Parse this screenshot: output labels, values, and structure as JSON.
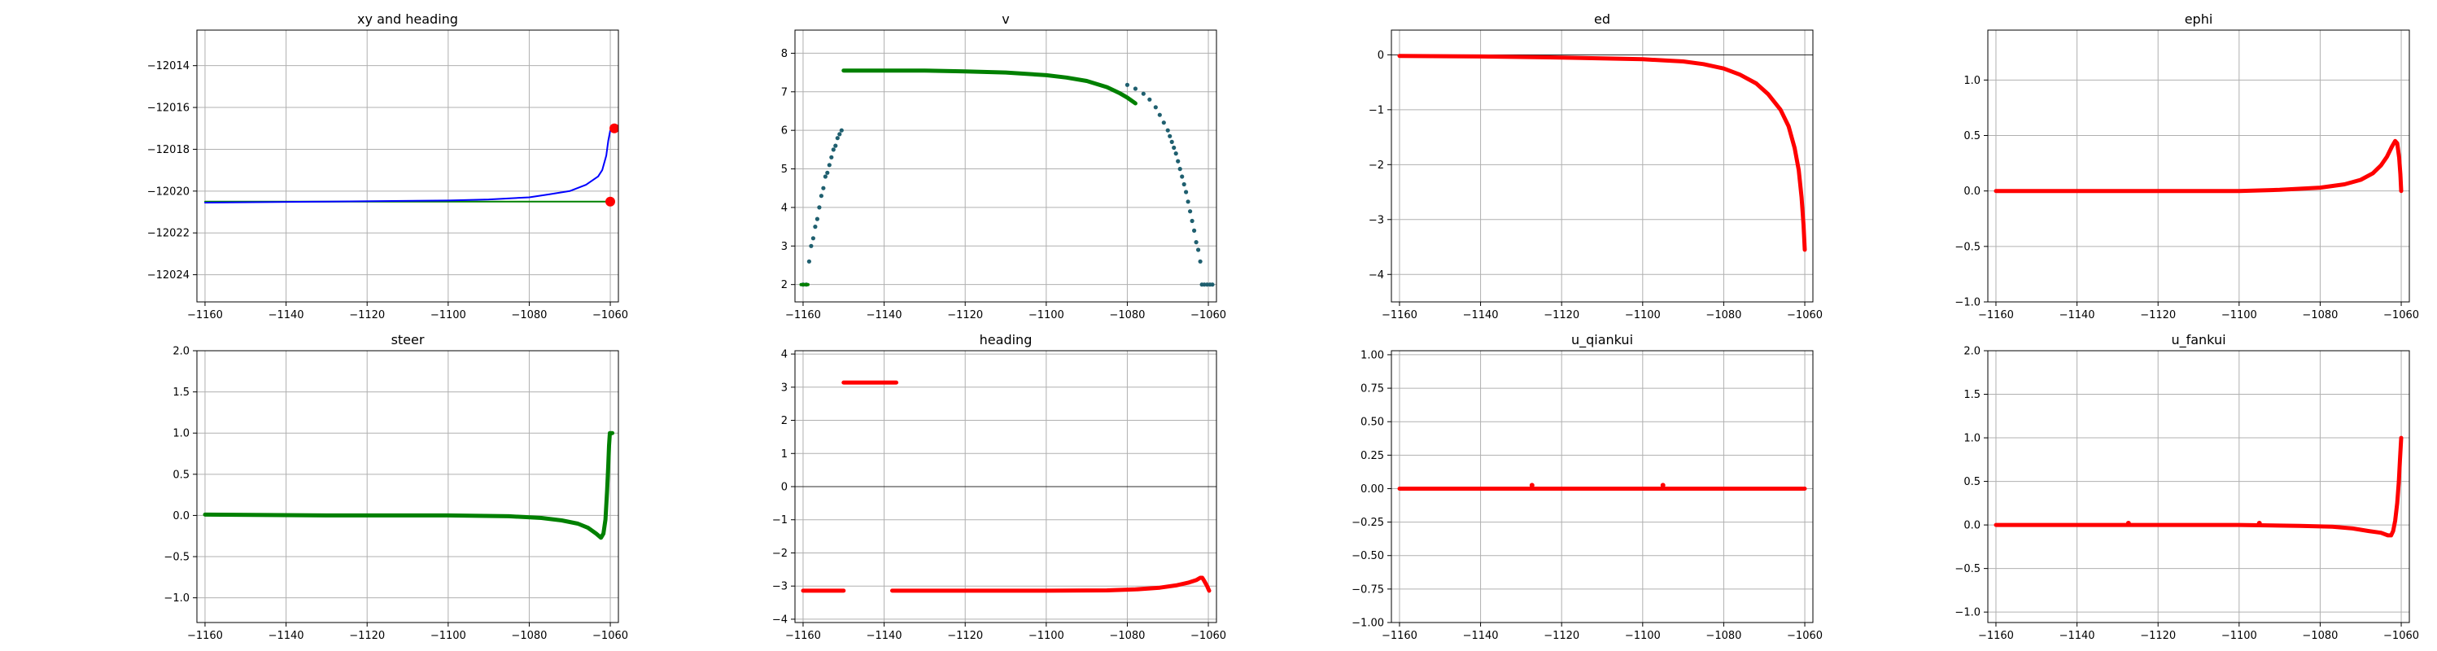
{
  "colors": {
    "red": "#ff0000",
    "green": "#008000",
    "blue": "#0000ff",
    "teal": "#1f5f6f"
  },
  "chart_data": [
    {
      "type": "line",
      "title": "xy and heading",
      "xlim": [
        -1162,
        -1058
      ],
      "ylim": [
        -12025.3,
        -12012.3
      ],
      "xticks": [
        -1160,
        -1140,
        -1120,
        -1100,
        -1080,
        -1060
      ],
      "yticks": [
        -12024,
        -12022,
        -12020,
        -12018,
        -12016,
        -12014
      ],
      "xtick_labels": [
        "−1160",
        "−1140",
        "−1120",
        "−1100",
        "−1080",
        "−1060"
      ],
      "ytick_labels": [
        "−12024",
        "−12022",
        "−12020",
        "−12018",
        "−12016",
        "−12014"
      ],
      "grid": true,
      "series": [
        {
          "style": "line",
          "color": "green",
          "points": [
            [
              -1160,
              -12020.5
            ],
            [
              -1060,
              -12020.5
            ]
          ]
        },
        {
          "style": "line",
          "color": "blue",
          "points": [
            [
              -1160,
              -12020.55
            ],
            [
              -1130,
              -12020.5
            ],
            [
              -1100,
              -12020.45
            ],
            [
              -1090,
              -12020.4
            ],
            [
              -1080,
              -12020.3
            ],
            [
              -1075,
              -12020.15
            ],
            [
              -1070,
              -12020.0
            ],
            [
              -1066,
              -12019.7
            ],
            [
              -1063,
              -12019.3
            ],
            [
              -1062,
              -12019.0
            ],
            [
              -1061,
              -12018.3
            ],
            [
              -1060.5,
              -12017.6
            ],
            [
              -1060,
              -12017.1
            ]
          ]
        },
        {
          "style": "markers",
          "color": "red",
          "r": 6,
          "points": [
            [
              -1060,
              -12020.5
            ],
            [
              -1059,
              -12017.0
            ]
          ]
        }
      ]
    },
    {
      "type": "scatter",
      "title": "v",
      "xlim": [
        -1162,
        -1058
      ],
      "ylim": [
        1.55,
        8.6
      ],
      "xticks": [
        -1160,
        -1140,
        -1120,
        -1100,
        -1080,
        -1060
      ],
      "yticks": [
        2,
        3,
        4,
        5,
        6,
        7,
        8
      ],
      "xtick_labels": [
        "−1160",
        "−1140",
        "−1120",
        "−1100",
        "−1080",
        "−1060"
      ],
      "ytick_labels": [
        "2",
        "3",
        "4",
        "5",
        "6",
        "7",
        "8"
      ],
      "grid": true,
      "series": [
        {
          "style": "markers",
          "color": "teal",
          "r": 2.6,
          "points": [
            [
              -1160,
              2.0
            ],
            [
              -1159.2,
              2.0
            ],
            [
              -1158.5,
              2.6
            ],
            [
              -1158,
              3.0
            ],
            [
              -1157.5,
              3.2
            ],
            [
              -1157,
              3.5
            ],
            [
              -1156.5,
              3.7
            ],
            [
              -1156,
              4.0
            ],
            [
              -1155.5,
              4.3
            ],
            [
              -1155,
              4.5
            ],
            [
              -1154.5,
              4.8
            ],
            [
              -1154,
              4.9
            ],
            [
              -1153.5,
              5.1
            ],
            [
              -1153,
              5.3
            ],
            [
              -1152.5,
              5.5
            ],
            [
              -1152,
              5.6
            ],
            [
              -1151.5,
              5.8
            ],
            [
              -1151,
              5.9
            ],
            [
              -1150.5,
              6.0
            ],
            [
              -1080,
              7.18
            ],
            [
              -1078,
              7.08
            ],
            [
              -1076,
              6.95
            ],
            [
              -1074.5,
              6.8
            ],
            [
              -1073,
              6.6
            ],
            [
              -1072,
              6.4
            ],
            [
              -1071,
              6.2
            ],
            [
              -1070,
              6.0
            ],
            [
              -1069.5,
              5.85
            ],
            [
              -1069,
              5.7
            ],
            [
              -1068.5,
              5.55
            ],
            [
              -1068,
              5.4
            ],
            [
              -1067.5,
              5.2
            ],
            [
              -1067,
              5.0
            ],
            [
              -1066.5,
              4.8
            ],
            [
              -1066,
              4.6
            ],
            [
              -1065.5,
              4.4
            ],
            [
              -1065,
              4.15
            ],
            [
              -1064.5,
              3.9
            ],
            [
              -1064,
              3.65
            ],
            [
              -1063.5,
              3.4
            ],
            [
              -1063,
              3.1
            ],
            [
              -1062.5,
              2.9
            ],
            [
              -1062,
              2.6
            ],
            [
              -1061.6,
              2.0
            ],
            [
              -1061,
              2.0
            ],
            [
              -1060.3,
              2.0
            ],
            [
              -1059.6,
              2.0
            ],
            [
              -1059,
              2.0
            ]
          ]
        },
        {
          "style": "line",
          "color": "green",
          "width": 4,
          "points": [
            [
              -1160.5,
              2.0
            ],
            [
              -1158.8,
              2.0
            ]
          ]
        },
        {
          "style": "line",
          "color": "green",
          "width": 5,
          "points": [
            [
              -1150,
              7.55
            ],
            [
              -1130,
              7.55
            ],
            [
              -1120,
              7.53
            ],
            [
              -1110,
              7.5
            ],
            [
              -1100,
              7.43
            ],
            [
              -1095,
              7.37
            ],
            [
              -1090,
              7.28
            ],
            [
              -1085,
              7.12
            ],
            [
              -1082,
              6.97
            ],
            [
              -1080,
              6.85
            ],
            [
              -1078,
              6.7
            ]
          ]
        }
      ]
    },
    {
      "type": "line",
      "title": "ed",
      "xlim": [
        -1162,
        -1058
      ],
      "ylim": [
        -4.5,
        0.45
      ],
      "xticks": [
        -1160,
        -1140,
        -1120,
        -1100,
        -1080,
        -1060
      ],
      "yticks": [
        -4,
        -3,
        -2,
        -1,
        0
      ],
      "xtick_labels": [
        "−1160",
        "−1140",
        "−1120",
        "−1100",
        "−1080",
        "−1060"
      ],
      "ytick_labels": [
        "−4",
        "−3",
        "−2",
        "−1",
        "0"
      ],
      "grid": true,
      "zero_line": true,
      "series": [
        {
          "style": "line",
          "color": "red",
          "width": 5,
          "points": [
            [
              -1160,
              -0.02
            ],
            [
              -1140,
              -0.03
            ],
            [
              -1120,
              -0.05
            ],
            [
              -1100,
              -0.08
            ],
            [
              -1090,
              -0.12
            ],
            [
              -1085,
              -0.17
            ],
            [
              -1080,
              -0.25
            ],
            [
              -1076,
              -0.36
            ],
            [
              -1072,
              -0.52
            ],
            [
              -1069,
              -0.72
            ],
            [
              -1066,
              -1.0
            ],
            [
              -1064,
              -1.3
            ],
            [
              -1062.5,
              -1.7
            ],
            [
              -1061.5,
              -2.1
            ],
            [
              -1060.8,
              -2.6
            ],
            [
              -1060.3,
              -3.1
            ],
            [
              -1060,
              -3.55
            ]
          ]
        }
      ]
    },
    {
      "type": "line",
      "title": "ephi",
      "xlim": [
        -1162,
        -1058
      ],
      "ylim": [
        -1.0,
        1.45
      ],
      "xticks": [
        -1160,
        -1140,
        -1120,
        -1100,
        -1080,
        -1060
      ],
      "yticks": [
        -1.0,
        -0.5,
        0.0,
        0.5,
        1.0
      ],
      "xtick_labels": [
        "−1160",
        "−1140",
        "−1120",
        "−1100",
        "−1080",
        "−1060"
      ],
      "ytick_labels": [
        "−1.0",
        "−0.5",
        "0.0",
        "0.5",
        "1.0"
      ],
      "grid": true,
      "series": [
        {
          "style": "line",
          "color": "red",
          "width": 5,
          "points": [
            [
              -1160,
              0.0
            ],
            [
              -1100,
              0.0
            ],
            [
              -1090,
              0.01
            ],
            [
              -1080,
              0.03
            ],
            [
              -1074,
              0.06
            ],
            [
              -1070,
              0.1
            ],
            [
              -1067,
              0.16
            ],
            [
              -1065,
              0.23
            ],
            [
              -1063.5,
              0.31
            ],
            [
              -1062.3,
              0.4
            ],
            [
              -1061.5,
              0.45
            ],
            [
              -1061,
              0.43
            ],
            [
              -1060.5,
              0.3
            ],
            [
              -1060.2,
              0.15
            ],
            [
              -1060,
              0.0
            ]
          ]
        }
      ]
    },
    {
      "type": "line",
      "title": "steer",
      "xlim": [
        -1162,
        -1058
      ],
      "ylim": [
        -1.3,
        2.0
      ],
      "xticks": [
        -1160,
        -1140,
        -1120,
        -1100,
        -1080,
        -1060
      ],
      "yticks": [
        -1.0,
        -0.5,
        0.0,
        0.5,
        1.0,
        1.5,
        2.0
      ],
      "xtick_labels": [
        "−1160",
        "−1140",
        "−1120",
        "−1100",
        "−1080",
        "−1060"
      ],
      "ytick_labels": [
        "−1.0",
        "−0.5",
        "0.0",
        "0.5",
        "1.0",
        "1.5",
        "2.0"
      ],
      "grid": true,
      "series": [
        {
          "style": "line",
          "color": "green",
          "width": 5,
          "points": [
            [
              -1160,
              0.01
            ],
            [
              -1130,
              0.0
            ],
            [
              -1100,
              0.0
            ],
            [
              -1085,
              -0.01
            ],
            [
              -1077,
              -0.03
            ],
            [
              -1072,
              -0.06
            ],
            [
              -1068,
              -0.1
            ],
            [
              -1065.5,
              -0.15
            ],
            [
              -1063.5,
              -0.22
            ],
            [
              -1062.3,
              -0.27
            ],
            [
              -1061.7,
              -0.22
            ],
            [
              -1061.2,
              -0.05
            ],
            [
              -1060.8,
              0.3
            ],
            [
              -1060.5,
              0.6
            ],
            [
              -1060.3,
              0.85
            ],
            [
              -1060.1,
              1.0
            ],
            [
              -1059.5,
              1.0
            ]
          ]
        }
      ]
    },
    {
      "type": "scatter",
      "title": "heading",
      "xlim": [
        -1162,
        -1058
      ],
      "ylim": [
        -4.1,
        4.1
      ],
      "xticks": [
        -1160,
        -1140,
        -1120,
        -1100,
        -1080,
        -1060
      ],
      "yticks": [
        -4,
        -3,
        -2,
        -1,
        0,
        1,
        2,
        3,
        4
      ],
      "xtick_labels": [
        "−1160",
        "−1140",
        "−1120",
        "−1100",
        "−1080",
        "−1060"
      ],
      "ytick_labels": [
        "−4",
        "−3",
        "−2",
        "−1",
        "0",
        "1",
        "2",
        "3",
        "4"
      ],
      "grid": true,
      "zero_line": true,
      "series": [
        {
          "style": "line",
          "color": "red",
          "width": 5,
          "points": [
            [
              -1160,
              -3.14
            ],
            [
              -1150,
              -3.14
            ]
          ]
        },
        {
          "style": "line",
          "color": "red",
          "width": 5,
          "points": [
            [
              -1150,
              3.14
            ],
            [
              -1137,
              3.14
            ]
          ]
        },
        {
          "style": "line",
          "color": "red",
          "width": 5,
          "points": [
            [
              -1138,
              -3.14
            ],
            [
              -1100,
              -3.14
            ],
            [
              -1085,
              -3.13
            ],
            [
              -1078,
              -3.1
            ],
            [
              -1072,
              -3.05
            ],
            [
              -1068,
              -2.98
            ],
            [
              -1065,
              -2.9
            ],
            [
              -1063,
              -2.82
            ],
            [
              -1062,
              -2.75
            ],
            [
              -1061.5,
              -2.75
            ],
            [
              -1061,
              -2.85
            ],
            [
              -1060.3,
              -3.0
            ],
            [
              -1059.8,
              -3.14
            ]
          ]
        }
      ]
    },
    {
      "type": "line",
      "title": "u_qiankui",
      "xlim": [
        -1162,
        -1058
      ],
      "ylim": [
        -1.0,
        1.03
      ],
      "xticks": [
        -1160,
        -1140,
        -1120,
        -1100,
        -1080,
        -1060
      ],
      "yticks": [
        -1.0,
        -0.75,
        -0.5,
        -0.25,
        0.0,
        0.25,
        0.5,
        0.75,
        1.0
      ],
      "xtick_labels": [
        "−1160",
        "−1140",
        "−1120",
        "−1100",
        "−1080",
        "−1060"
      ],
      "ytick_labels": [
        "−1.00",
        "−0.75",
        "−0.50",
        "−0.25",
        "0.00",
        "0.25",
        "0.50",
        "0.75",
        "1.00"
      ],
      "grid": true,
      "series": [
        {
          "style": "line",
          "color": "red",
          "width": 5,
          "points": [
            [
              -1160,
              0.0
            ],
            [
              -1060,
              0.0
            ]
          ]
        },
        {
          "style": "markers",
          "color": "red",
          "r": 3,
          "points": [
            [
              -1127.3,
              0.025
            ],
            [
              -1095,
              0.025
            ]
          ]
        }
      ]
    },
    {
      "type": "line",
      "title": "u_fankui",
      "xlim": [
        -1162,
        -1058
      ],
      "ylim": [
        -1.12,
        2.0
      ],
      "xticks": [
        -1160,
        -1140,
        -1120,
        -1100,
        -1080,
        -1060
      ],
      "yticks": [
        -1.0,
        -0.5,
        0.0,
        0.5,
        1.0,
        1.5,
        2.0
      ],
      "xtick_labels": [
        "−1160",
        "−1140",
        "−1120",
        "−1100",
        "−1080",
        "−1060"
      ],
      "ytick_labels": [
        "−1.0",
        "−0.5",
        "0.0",
        "0.5",
        "1.0",
        "1.5",
        "2.0"
      ],
      "grid": true,
      "series": [
        {
          "style": "line",
          "color": "red",
          "width": 5,
          "points": [
            [
              -1160,
              0.0
            ],
            [
              -1100,
              0.0
            ],
            [
              -1085,
              -0.01
            ],
            [
              -1077,
              -0.02
            ],
            [
              -1072,
              -0.04
            ],
            [
              -1068,
              -0.07
            ],
            [
              -1065,
              -0.09
            ],
            [
              -1063.3,
              -0.12
            ],
            [
              -1062.5,
              -0.12
            ],
            [
              -1062,
              -0.07
            ],
            [
              -1061.5,
              0.05
            ],
            [
              -1061,
              0.25
            ],
            [
              -1060.6,
              0.5
            ],
            [
              -1060.3,
              0.75
            ],
            [
              -1060,
              1.0
            ]
          ]
        },
        {
          "style": "markers",
          "color": "red",
          "r": 3,
          "points": [
            [
              -1127.3,
              0.02
            ],
            [
              -1095,
              0.02
            ]
          ]
        }
      ]
    }
  ]
}
